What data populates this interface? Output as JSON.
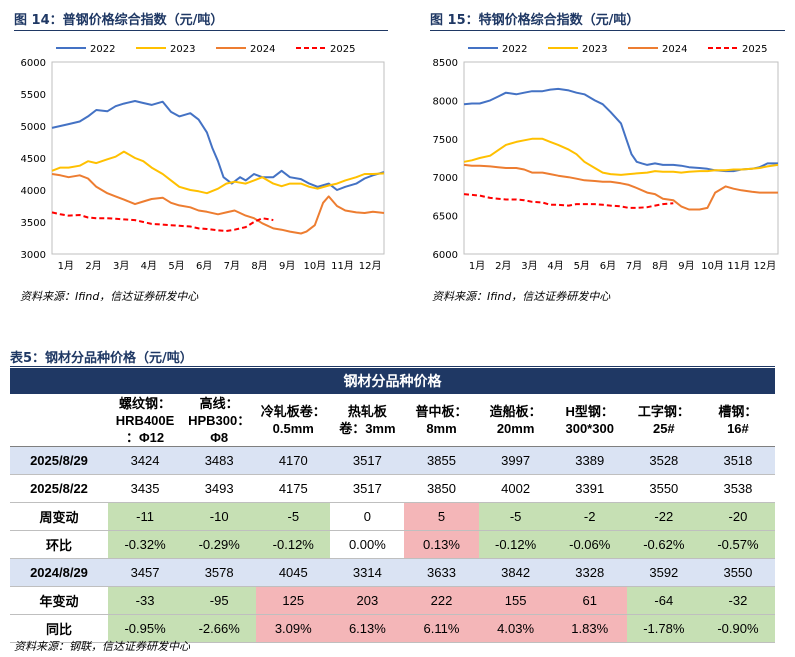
{
  "fig14": {
    "title": "图 14：普钢价格综合指数（元/吨）",
    "source": "资料来源：Ifind，信达证券研发中心",
    "chart_data": {
      "type": "line",
      "xlabels": [
        "1月",
        "2月",
        "3月",
        "4月",
        "5月",
        "6月",
        "7月",
        "8月",
        "9月",
        "10月",
        "11月",
        "12月"
      ],
      "ylim": [
        3000,
        6000
      ],
      "yticks": [
        3000,
        3500,
        4000,
        4500,
        5000,
        5500,
        6000
      ],
      "series": [
        {
          "name": "2022",
          "color": "#4472c4",
          "dash": false,
          "x": [
            0,
            0.3,
            0.6,
            1,
            1.3,
            1.6,
            2,
            2.3,
            2.6,
            3,
            3.3,
            3.6,
            4,
            4.3,
            4.6,
            5,
            5.3,
            5.6,
            5.8,
            6,
            6.2,
            6.5,
            6.8,
            7,
            7.3,
            7.6,
            8,
            8.3,
            8.6,
            9,
            9.3,
            9.6,
            10,
            10.3,
            10.6,
            11,
            11.3,
            11.6,
            12
          ],
          "y": [
            4970,
            5000,
            5030,
            5070,
            5150,
            5250,
            5230,
            5310,
            5350,
            5390,
            5360,
            5330,
            5380,
            5220,
            5150,
            5200,
            5100,
            4900,
            4650,
            4450,
            4200,
            4100,
            4200,
            4150,
            4250,
            4200,
            4200,
            4300,
            4200,
            4170,
            4100,
            4050,
            4100,
            4000,
            4050,
            4100,
            4180,
            4230,
            4280
          ]
        },
        {
          "name": "2023",
          "color": "#ffc000",
          "dash": false,
          "x": [
            0,
            0.3,
            0.6,
            1,
            1.3,
            1.6,
            2,
            2.3,
            2.6,
            3,
            3.3,
            3.6,
            4,
            4.3,
            4.6,
            5,
            5.3,
            5.6,
            6,
            6.3,
            6.6,
            7,
            7.3,
            7.6,
            8,
            8.3,
            8.6,
            9,
            9.3,
            9.6,
            10,
            10.3,
            10.6,
            11,
            11.3,
            11.6,
            12
          ],
          "y": [
            4300,
            4350,
            4350,
            4380,
            4450,
            4420,
            4480,
            4520,
            4600,
            4500,
            4450,
            4350,
            4250,
            4150,
            4050,
            4000,
            3980,
            3950,
            4020,
            4100,
            4130,
            4100,
            4150,
            4200,
            4100,
            4060,
            4100,
            4100,
            4050,
            4020,
            4070,
            4100,
            4150,
            4200,
            4250,
            4250,
            4260
          ]
        },
        {
          "name": "2024",
          "color": "#ed7d31",
          "dash": false,
          "x": [
            0,
            0.3,
            0.6,
            1,
            1.3,
            1.6,
            2,
            2.3,
            2.6,
            3,
            3.3,
            3.6,
            4,
            4.3,
            4.6,
            5,
            5.3,
            5.6,
            6,
            6.3,
            6.6,
            7,
            7.3,
            7.6,
            8,
            8.3,
            8.6,
            9,
            9.2,
            9.5,
            9.8,
            10,
            10.3,
            10.6,
            11,
            11.3,
            11.6,
            12
          ],
          "y": [
            4250,
            4230,
            4200,
            4230,
            4180,
            4050,
            3950,
            3900,
            3850,
            3780,
            3820,
            3860,
            3880,
            3800,
            3760,
            3730,
            3680,
            3660,
            3620,
            3650,
            3680,
            3600,
            3560,
            3480,
            3400,
            3380,
            3350,
            3320,
            3350,
            3450,
            3800,
            3900,
            3750,
            3680,
            3650,
            3640,
            3660,
            3640
          ]
        },
        {
          "name": "2025",
          "color": "#ff0000",
          "dash": true,
          "x": [
            0,
            0.3,
            0.6,
            1,
            1.3,
            1.6,
            2,
            2.3,
            2.6,
            3,
            3.3,
            3.6,
            4,
            4.3,
            4.6,
            5,
            5.3,
            5.6,
            6,
            6.3,
            6.6,
            7,
            7.3,
            7.6,
            8
          ],
          "y": [
            3650,
            3620,
            3600,
            3610,
            3570,
            3560,
            3560,
            3550,
            3540,
            3530,
            3500,
            3470,
            3460,
            3450,
            3440,
            3430,
            3400,
            3390,
            3370,
            3360,
            3380,
            3420,
            3500,
            3560,
            3530
          ]
        }
      ]
    }
  },
  "fig15": {
    "title": "图 15：特钢价格综合指数（元/吨）",
    "source": "资料来源：Ifind，信达证券研发中心",
    "chart_data": {
      "type": "line",
      "xlabels": [
        "1月",
        "2月",
        "3月",
        "4月",
        "5月",
        "6月",
        "7月",
        "8月",
        "9月",
        "10月",
        "11月",
        "12月"
      ],
      "ylim": [
        6000,
        8500
      ],
      "yticks": [
        6000,
        6500,
        7000,
        7500,
        8000,
        8500
      ],
      "series": [
        {
          "name": "2022",
          "color": "#4472c4",
          "dash": false,
          "x": [
            0,
            0.3,
            0.6,
            1,
            1.3,
            1.6,
            2,
            2.3,
            2.6,
            3,
            3.3,
            3.6,
            4,
            4.3,
            4.6,
            5,
            5.3,
            5.6,
            6,
            6.2,
            6.4,
            6.6,
            6.8,
            7,
            7.3,
            7.6,
            8,
            8.3,
            8.6,
            9,
            9.3,
            9.6,
            10,
            10.3,
            10.6,
            11,
            11.3,
            11.6,
            12
          ],
          "y": [
            7950,
            7960,
            7960,
            8000,
            8050,
            8100,
            8080,
            8100,
            8120,
            8120,
            8140,
            8150,
            8130,
            8100,
            8080,
            8000,
            7950,
            7850,
            7700,
            7500,
            7300,
            7200,
            7180,
            7160,
            7180,
            7160,
            7160,
            7150,
            7130,
            7120,
            7110,
            7090,
            7080,
            7080,
            7100,
            7110,
            7130,
            7180,
            7180
          ]
        },
        {
          "name": "2023",
          "color": "#ffc000",
          "dash": false,
          "x": [
            0,
            0.3,
            0.6,
            1,
            1.3,
            1.6,
            2,
            2.3,
            2.6,
            3,
            3.3,
            3.6,
            4,
            4.3,
            4.6,
            5,
            5.3,
            5.6,
            6,
            6.3,
            6.6,
            7,
            7.3,
            7.6,
            8,
            8.3,
            8.6,
            9,
            9.3,
            9.6,
            10,
            10.3,
            10.6,
            11,
            11.3,
            11.6,
            12
          ],
          "y": [
            7200,
            7220,
            7250,
            7280,
            7350,
            7420,
            7460,
            7480,
            7500,
            7500,
            7460,
            7420,
            7360,
            7300,
            7200,
            7120,
            7060,
            7040,
            7030,
            7040,
            7050,
            7060,
            7080,
            7070,
            7070,
            7060,
            7070,
            7080,
            7080,
            7090,
            7090,
            7100,
            7100,
            7110,
            7120,
            7140,
            7160
          ]
        },
        {
          "name": "2024",
          "color": "#ed7d31",
          "dash": false,
          "x": [
            0,
            0.3,
            0.6,
            1,
            1.3,
            1.6,
            2,
            2.3,
            2.6,
            3,
            3.3,
            3.6,
            4,
            4.3,
            4.6,
            5,
            5.3,
            5.6,
            6,
            6.3,
            6.6,
            7,
            7.3,
            7.6,
            8,
            8.3,
            8.6,
            9,
            9.3,
            9.6,
            10,
            10.3,
            10.6,
            11,
            11.3,
            11.6,
            12
          ],
          "y": [
            7160,
            7150,
            7150,
            7140,
            7130,
            7120,
            7120,
            7100,
            7060,
            7060,
            7040,
            7020,
            7000,
            6980,
            6960,
            6950,
            6940,
            6940,
            6920,
            6900,
            6860,
            6800,
            6780,
            6720,
            6700,
            6620,
            6580,
            6580,
            6600,
            6800,
            6880,
            6850,
            6830,
            6810,
            6800,
            6800,
            6800
          ]
        },
        {
          "name": "2025",
          "color": "#ff0000",
          "dash": true,
          "x": [
            0,
            0.3,
            0.6,
            1,
            1.3,
            1.6,
            2,
            2.3,
            2.6,
            3,
            3.3,
            3.6,
            4,
            4.3,
            4.6,
            5,
            5.3,
            5.6,
            6,
            6.3,
            6.6,
            7,
            7.3,
            7.6,
            8
          ],
          "y": [
            6780,
            6770,
            6760,
            6730,
            6720,
            6710,
            6710,
            6700,
            6680,
            6670,
            6640,
            6640,
            6630,
            6650,
            6650,
            6650,
            6640,
            6630,
            6620,
            6600,
            6600,
            6610,
            6630,
            6650,
            6660
          ]
        }
      ]
    }
  },
  "table": {
    "title": "表5：钢材分品种价格（元/吨）",
    "banner": "钢材分品种价格",
    "columns": [
      [
        "螺纹钢：",
        "HRB400E",
        "：Φ12"
      ],
      [
        "高线：",
        "HPB300：",
        "Φ8"
      ],
      [
        "冷轧板卷：",
        "0.5mm"
      ],
      [
        "热轧板",
        "卷：3mm"
      ],
      [
        "普中板：",
        "8mm"
      ],
      [
        "造船板：",
        "20mm"
      ],
      [
        "H型钢：",
        "300*300"
      ],
      [
        "工字钢：",
        "25#"
      ],
      [
        "槽钢：",
        "16#"
      ]
    ],
    "rows": [
      {
        "label": "2025/8/29",
        "style": "blue",
        "values": [
          "3424",
          "3483",
          "4170",
          "3517",
          "3855",
          "3997",
          "3389",
          "3528",
          "3518"
        ]
      },
      {
        "label": "2025/8/22",
        "style": "plain",
        "values": [
          "3435",
          "3493",
          "4175",
          "3517",
          "3850",
          "4002",
          "3391",
          "3550",
          "3538"
        ]
      },
      {
        "label": "周变动",
        "style": "color",
        "values": [
          "-11",
          "-10",
          "-5",
          "0",
          "5",
          "-5",
          "-2",
          "-22",
          "-20"
        ],
        "colors": [
          "g",
          "g",
          "g",
          "w",
          "r",
          "g",
          "g",
          "g",
          "g"
        ]
      },
      {
        "label": "环比",
        "style": "color",
        "values": [
          "-0.32%",
          "-0.29%",
          "-0.12%",
          "0.00%",
          "0.13%",
          "-0.12%",
          "-0.06%",
          "-0.62%",
          "-0.57%"
        ],
        "colors": [
          "g",
          "g",
          "g",
          "w",
          "r",
          "g",
          "g",
          "g",
          "g"
        ]
      },
      {
        "label": "2024/8/29",
        "style": "blue",
        "values": [
          "3457",
          "3578",
          "4045",
          "3314",
          "3633",
          "3842",
          "3328",
          "3592",
          "3550"
        ]
      },
      {
        "label": "年变动",
        "style": "color",
        "values": [
          "-33",
          "-95",
          "125",
          "203",
          "222",
          "155",
          "61",
          "-64",
          "-32"
        ],
        "colors": [
          "g",
          "g",
          "r",
          "r",
          "r",
          "r",
          "r",
          "g",
          "g"
        ]
      },
      {
        "label": "同比",
        "style": "color",
        "values": [
          "-0.95%",
          "-2.66%",
          "3.09%",
          "6.13%",
          "6.11%",
          "4.03%",
          "1.83%",
          "-1.78%",
          "-0.90%"
        ],
        "colors": [
          "g",
          "g",
          "r",
          "r",
          "r",
          "r",
          "r",
          "g",
          "g"
        ]
      }
    ],
    "source": "资料来源：钢联，信达证券研发中心"
  }
}
